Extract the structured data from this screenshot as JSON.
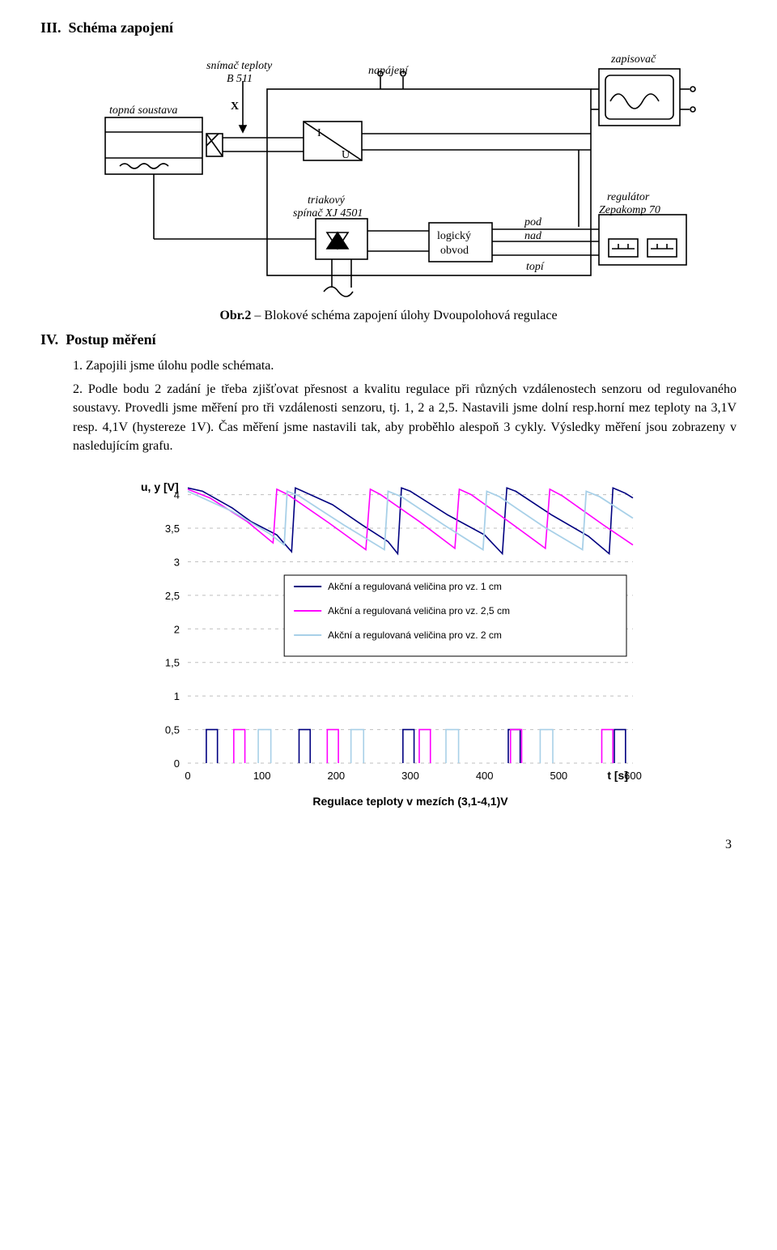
{
  "section_III": {
    "numeral": "III.",
    "title": "Schéma zapojení"
  },
  "caption": {
    "prefix": "Obr.2",
    "dash": " – ",
    "rest": "Blokové schéma zapojení úlohy Dvoupolohová regulace"
  },
  "section_IV": {
    "numeral": "IV.",
    "title": "Postup měření"
  },
  "list": {
    "item1": "1. Zapojili jsme úlohu podle schémata.",
    "item2": "2. Podle bodu 2 zadání je třeba zjišťovat přesnost a kvalitu regulace při různých vzdálenostech senzoru od regulovaného soustavy. Provedli jsme měření pro tři vzdálenosti senzoru, tj. 1, 2 a 2,5. Nastavili jsme dolní resp.horní mez teploty na 3,1V resp. 4,1V (hystereze 1V). Čas měření jsme nastavili tak, aby proběhlo alespoň 3 cykly. Výsledky měření jsou zobrazeny v nasledujícím grafu."
  },
  "schematic_labels": {
    "topna": "topná soustava",
    "snimac_l1": "snímač teploty",
    "snimac_l2": "B 511",
    "X": "X",
    "napajeni": "napájení",
    "zapisovac": "zapisovač",
    "I": "I",
    "U": "U",
    "triak1": "triakový",
    "triak2": "spínač XJ 4501",
    "logicky1": "logický",
    "logicky2": "obvod",
    "pod": "pod",
    "nad": "nad",
    "topi": "topí",
    "reg1": "regulátor",
    "reg2": "Zepakomp 70"
  },
  "chart": {
    "type": "line",
    "y_label": "u, y [V]",
    "x_label": "t [s]",
    "x_title": "Regulace teploty v mezích (3,1-4,1)V",
    "ylim": [
      0,
      4.2
    ],
    "xlim": [
      0,
      600
    ],
    "ytick_labels": [
      "0",
      "0,5",
      "1",
      "1,5",
      "2",
      "2,5",
      "3",
      "3,5",
      "4"
    ],
    "ytick_vals": [
      0,
      0.5,
      1,
      1.5,
      2,
      2.5,
      3,
      3.5,
      4
    ],
    "xtick_labels": [
      "0",
      "100",
      "200",
      "300",
      "400",
      "500",
      "600"
    ],
    "xtick_vals": [
      0,
      100,
      200,
      300,
      400,
      500,
      600
    ],
    "gridline_color": "#bfbfbf",
    "background_color": "#ffffff",
    "axis_text_color": "#000000",
    "axis_text_fontsize": 13,
    "y_label_fontsize": 14,
    "y_label_weight": "bold",
    "x_title_fontsize": 14,
    "x_title_weight": "bold",
    "legend": {
      "border_color": "#000000",
      "text_fontsize": 12,
      "items": [
        {
          "label": "Akční a regulovaná veličina pro vz. 1 cm",
          "color": "#000080"
        },
        {
          "label": "Akční a regulovaná veličina pro vz. 2,5 cm",
          "color": "#ff00ff"
        },
        {
          "label": "Akční a regulovaná veličina pro vz. 2 cm",
          "color": "#a8d0e8"
        }
      ]
    },
    "series": [
      {
        "name": "vz1_analog",
        "color": "#000080",
        "stroke_width": 1.6,
        "dash": "",
        "points": [
          [
            0,
            4.1
          ],
          [
            20,
            4.05
          ],
          [
            60,
            3.8
          ],
          [
            85,
            3.6
          ],
          [
            120,
            3.4
          ],
          [
            140,
            3.15
          ],
          [
            145,
            4.1
          ],
          [
            155,
            4.05
          ],
          [
            195,
            3.85
          ],
          [
            235,
            3.55
          ],
          [
            270,
            3.3
          ],
          [
            283,
            3.12
          ],
          [
            288,
            4.1
          ],
          [
            300,
            4.05
          ],
          [
            350,
            3.7
          ],
          [
            400,
            3.4
          ],
          [
            424,
            3.12
          ],
          [
            430,
            4.1
          ],
          [
            442,
            4.05
          ],
          [
            490,
            3.7
          ],
          [
            540,
            3.38
          ],
          [
            568,
            3.12
          ],
          [
            573,
            4.1
          ],
          [
            590,
            4.02
          ],
          [
            600,
            3.95
          ]
        ]
      },
      {
        "name": "vz25_analog",
        "color": "#ff00ff",
        "stroke_width": 1.6,
        "dash": "",
        "points": [
          [
            0,
            4.08
          ],
          [
            30,
            3.95
          ],
          [
            80,
            3.6
          ],
          [
            115,
            3.28
          ],
          [
            120,
            4.08
          ],
          [
            135,
            4.0
          ],
          [
            190,
            3.58
          ],
          [
            240,
            3.18
          ],
          [
            246,
            4.08
          ],
          [
            260,
            4.0
          ],
          [
            312,
            3.6
          ],
          [
            360,
            3.2
          ],
          [
            366,
            4.08
          ],
          [
            382,
            4.0
          ],
          [
            430,
            3.62
          ],
          [
            482,
            3.2
          ],
          [
            488,
            4.08
          ],
          [
            505,
            3.98
          ],
          [
            560,
            3.55
          ],
          [
            600,
            3.25
          ]
        ]
      },
      {
        "name": "vz2_analog",
        "color": "#a8d0e8",
        "stroke_width": 1.8,
        "dash": "",
        "points": [
          [
            0,
            4.05
          ],
          [
            60,
            3.75
          ],
          [
            110,
            3.42
          ],
          [
            130,
            3.25
          ],
          [
            134,
            4.05
          ],
          [
            150,
            3.98
          ],
          [
            210,
            3.55
          ],
          [
            265,
            3.18
          ],
          [
            270,
            4.05
          ],
          [
            288,
            3.97
          ],
          [
            345,
            3.55
          ],
          [
            398,
            3.18
          ],
          [
            403,
            4.05
          ],
          [
            420,
            3.97
          ],
          [
            480,
            3.52
          ],
          [
            532,
            3.18
          ],
          [
            537,
            4.05
          ],
          [
            555,
            3.97
          ],
          [
            600,
            3.65
          ]
        ]
      },
      {
        "name": "vz_pulses",
        "color": "",
        "stroke_width": 0,
        "dash": "",
        "points": []
      }
    ],
    "pulses": [
      {
        "color": "#000080",
        "x": [
          [
            25,
            40
          ],
          [
            150,
            165
          ],
          [
            290,
            305
          ],
          [
            432,
            448
          ],
          [
            575,
            590
          ]
        ]
      },
      {
        "color": "#ff00ff",
        "x": [
          [
            62,
            77
          ],
          [
            188,
            203
          ],
          [
            312,
            327
          ],
          [
            435,
            450
          ],
          [
            558,
            573
          ]
        ]
      },
      {
        "color": "#a8d0e8",
        "x": [
          [
            95,
            112
          ],
          [
            220,
            237
          ],
          [
            348,
            365
          ],
          [
            475,
            492
          ]
        ]
      }
    ],
    "pulse_amplitude": 0.5
  },
  "page_number": "3"
}
